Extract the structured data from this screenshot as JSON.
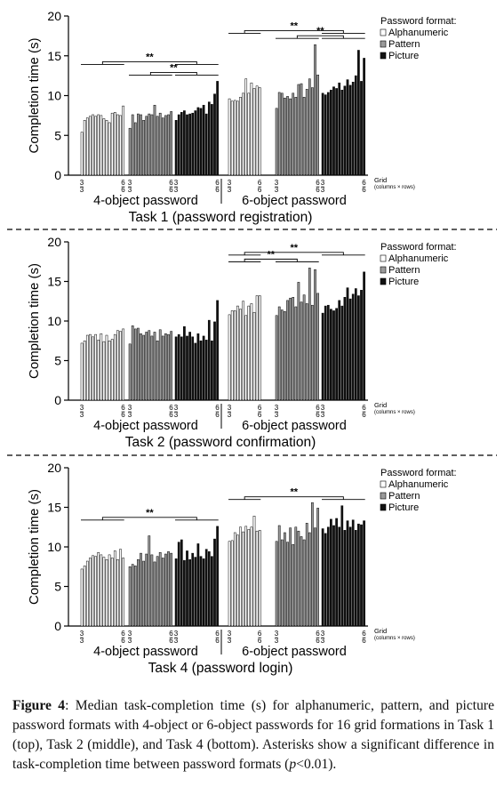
{
  "chart_data": [
    {
      "type": "bar",
      "title": "Task 1 (password registration)",
      "ylabel": "Completion time (s)",
      "ylim": [
        0,
        20
      ],
      "yticks": [
        0,
        5,
        10,
        15,
        20
      ],
      "grid": false,
      "legend": {
        "title": "Password format:",
        "position": "top-right"
      },
      "grid_axis_label": "Grid",
      "grid_axis_sublabel": "(columns × rows)",
      "grid_tick_labels": {
        "first_top": "3",
        "first_bottom": "3",
        "last_top": "6",
        "last_bottom": "6"
      },
      "groups": [
        {
          "label": "4-object password",
          "series": [
            {
              "name": "Alphanumeric",
              "color": "#ffffff",
              "values": [
                5.4,
                6.9,
                7.2,
                7.4,
                7.6,
                7.4,
                7.6,
                7.5,
                7.1,
                6.9,
                6.6,
                7.8,
                7.9,
                7.6,
                7.5,
                8.7
              ]
            },
            {
              "name": "Pattern",
              "color": "#9a9a9a",
              "values": [
                5.9,
                7.6,
                6.6,
                7.7,
                7.6,
                6.9,
                7.4,
                7.7,
                7.6,
                8.8,
                7.4,
                7.8,
                7.2,
                7.5,
                7.6,
                8.0
              ]
            },
            {
              "name": "Picture",
              "color": "#111111",
              "values": [
                6.9,
                7.6,
                7.9,
                8.1,
                7.6,
                7.7,
                7.8,
                8.1,
                8.5,
                8.4,
                8.8,
                7.7,
                9.2,
                8.9,
                10.2,
                11.8
              ]
            }
          ]
        },
        {
          "label": "6-object password",
          "series": [
            {
              "name": "Alphanumeric",
              "color": "#ffffff",
              "values": [
                9.6,
                9.3,
                9.4,
                9.3,
                9.8,
                10.3,
                12.1,
                10.3,
                11.6,
                10.9,
                11.2,
                11.0
              ]
            },
            {
              "name": "Pattern",
              "color": "#9a9a9a",
              "values": [
                8.4,
                10.4,
                10.3,
                9.7,
                9.9,
                9.6,
                10.3,
                9.8,
                11.4,
                11.5,
                9.8,
                10.8,
                12.1,
                11.0,
                16.4,
                12.6
              ]
            },
            {
              "name": "Picture",
              "color": "#111111",
              "values": [
                10.3,
                10.1,
                10.4,
                10.7,
                11.1,
                10.9,
                11.6,
                10.7,
                11.2,
                12.0,
                11.3,
                11.7,
                12.5,
                15.7,
                11.8,
                14.7
              ]
            }
          ]
        }
      ],
      "significance": [
        {
          "label": "**",
          "between": "4-object password: Alphanumeric / Picture"
        },
        {
          "label": "**",
          "between": "4-object password: Pattern / Picture"
        },
        {
          "label": "**",
          "between": "6-object password: Alphanumeric / Picture"
        },
        {
          "label": "**",
          "between": "6-object password: Pattern / Picture"
        }
      ]
    },
    {
      "type": "bar",
      "title": "Task 2 (password confirmation)",
      "ylabel": "Completion time (s)",
      "ylim": [
        0,
        20
      ],
      "yticks": [
        0,
        5,
        10,
        15,
        20
      ],
      "grid": false,
      "legend": {
        "title": "Password format:",
        "position": "top-right"
      },
      "grid_axis_label": "Grid",
      "grid_axis_sublabel": "(columns × rows)",
      "grid_tick_labels": {
        "first_top": "3",
        "first_bottom": "3",
        "last_top": "6",
        "last_bottom": "6"
      },
      "groups": [
        {
          "label": "4-object password",
          "series": [
            {
              "name": "Alphanumeric",
              "color": "#ffffff",
              "values": [
                7.2,
                7.5,
                8.2,
                8.3,
                8.0,
                8.3,
                7.6,
                8.4,
                7.4,
                8.2,
                7.5,
                7.7,
                8.3,
                8.8,
                8.7,
                9.0
              ]
            },
            {
              "name": "Pattern",
              "color": "#9a9a9a",
              "values": [
                7.1,
                9.4,
                9.0,
                9.1,
                8.4,
                8.2,
                8.6,
                8.8,
                8.1,
                8.6,
                7.5,
                8.9,
                8.1,
                8.4,
                8.3,
                8.7
              ]
            },
            {
              "name": "Picture",
              "color": "#111111",
              "values": [
                8.0,
                8.3,
                8.0,
                9.3,
                8.1,
                8.6,
                8.0,
                7.2,
                8.4,
                7.5,
                8.1,
                7.6,
                10.1,
                7.5,
                9.9,
                12.6
              ]
            }
          ]
        },
        {
          "label": "6-object password",
          "series": [
            {
              "name": "Alphanumeric",
              "color": "#ffffff",
              "values": [
                10.8,
                11.3,
                11.3,
                11.9,
                11.5,
                12.5,
                10.7,
                11.9,
                12.2,
                11.1,
                13.2,
                13.2
              ]
            },
            {
              "name": "Pattern",
              "color": "#9a9a9a",
              "values": [
                10.7,
                11.8,
                11.4,
                11.2,
                12.6,
                12.9,
                13.0,
                11.8,
                14.9,
                12.4,
                13.3,
                12.2,
                16.7,
                12.0,
                16.5,
                13.5
              ]
            },
            {
              "name": "Picture",
              "color": "#111111",
              "values": [
                11.0,
                11.9,
                12.0,
                11.5,
                11.3,
                11.6,
                12.6,
                11.9,
                13.0,
                14.2,
                12.8,
                13.4,
                14.1,
                13.2,
                13.9,
                16.2
              ]
            }
          ]
        }
      ],
      "significance": [
        {
          "label": "**",
          "between": "6-object password: Alphanumeric / Picture"
        },
        {
          "label": "**",
          "between": "6-object password: Alphanumeric / Pattern"
        }
      ]
    },
    {
      "type": "bar",
      "title": "Task 4 (password login)",
      "ylabel": "Completion time (s)",
      "ylim": [
        0,
        20
      ],
      "yticks": [
        0,
        5,
        10,
        15,
        20
      ],
      "grid": false,
      "legend": {
        "title": "Password format:",
        "position": "top-right"
      },
      "grid_axis_label": "Grid",
      "grid_axis_sublabel": "(columns × rows)",
      "grid_tick_labels": {
        "first_top": "3",
        "first_bottom": "3",
        "last_top": "6",
        "last_bottom": "6"
      },
      "groups": [
        {
          "label": "4-object password",
          "series": [
            {
              "name": "Alphanumeric",
              "color": "#ffffff",
              "values": [
                7.2,
                7.6,
                8.2,
                8.6,
                8.9,
                8.8,
                9.3,
                9.0,
                8.7,
                8.4,
                9.0,
                8.6,
                9.5,
                8.4,
                9.7,
                8.6
              ]
            },
            {
              "name": "Pattern",
              "color": "#9a9a9a",
              "values": [
                7.5,
                7.8,
                7.6,
                8.4,
                9.2,
                8.2,
                9.1,
                11.4,
                9.0,
                8.1,
                8.8,
                9.3,
                8.6,
                9.1,
                9.4,
                9.2
              ]
            },
            {
              "name": "Picture",
              "color": "#111111",
              "values": [
                8.5,
                10.6,
                10.9,
                8.3,
                9.5,
                8.4,
                9.2,
                8.7,
                10.4,
                8.8,
                8.5,
                9.7,
                9.4,
                8.8,
                11.0,
                12.6
              ]
            }
          ]
        },
        {
          "label": "6-object password",
          "series": [
            {
              "name": "Alphanumeric",
              "color": "#ffffff",
              "values": [
                10.7,
                10.8,
                11.8,
                11.5,
                12.5,
                11.9,
                12.6,
                12.2,
                12.5,
                13.9,
                12.0,
                12.1
              ]
            },
            {
              "name": "Pattern",
              "color": "#9a9a9a",
              "values": [
                10.7,
                12.7,
                10.9,
                11.8,
                10.6,
                12.4,
                10.3,
                12.5,
                12.0,
                11.3,
                10.9,
                13.0,
                11.8,
                15.6,
                12.4,
                14.9
              ]
            },
            {
              "name": "Picture",
              "color": "#111111",
              "values": [
                12.3,
                11.7,
                12.5,
                13.5,
                12.7,
                13.6,
                12.5,
                15.2,
                12.1,
                13.3,
                12.5,
                13.4,
                12.1,
                12.9,
                12.8,
                13.3
              ]
            }
          ]
        }
      ],
      "significance": [
        {
          "label": "**",
          "between": "4-object password: Alphanumeric / Picture"
        },
        {
          "label": "**",
          "between": "6-object password: Alphanumeric / Picture"
        }
      ]
    }
  ],
  "caption": {
    "label": "Figure 4",
    "text_a": ": Median task-completion time (s) for alphanumeric, pattern, and picture password formats with 4-object or 6-object passwords for 16 grid formations in Task 1 (top), Task 2 (middle), and Task 4 (bottom). Asterisks show a significant difference in task-completion time between password formats (",
    "p": "p",
    "text_b": "<0.01)."
  }
}
